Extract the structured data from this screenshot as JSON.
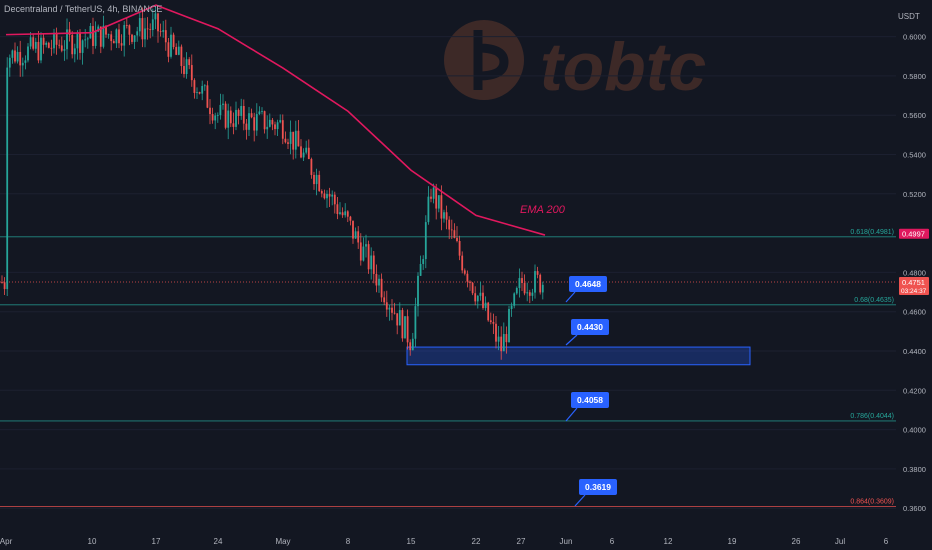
{
  "header": {
    "symbol_title": "Decentraland / TetherUS, 4h, BINANCE",
    "currency": "USDT"
  },
  "watermark": {
    "text": "tobtc",
    "logo_icon": "tobtc-logo-icon",
    "color": "#d2693c"
  },
  "colors": {
    "background": "#131722",
    "up": "#26a69a",
    "down": "#ef5350",
    "ema": "#e0185e",
    "fib_green": "#26a69a",
    "fib_red": "#ef5350",
    "zone": "#2962ff",
    "callout": "#2962ff"
  },
  "chart_data": {
    "type": "candlestick",
    "title": "Decentraland / TetherUS, 4h, BINANCE",
    "ylim": [
      0.352,
      0.628
    ],
    "y_ticks": [
      "0.6000",
      "0.5800",
      "0.5600",
      "0.5400",
      "0.5200",
      "0.4800",
      "0.4600",
      "0.4400",
      "0.4200",
      "0.4000",
      "0.3800",
      "0.3600"
    ],
    "x_ticks": [
      "Apr",
      "10",
      "17",
      "24",
      "May",
      "8",
      "15",
      "22",
      "27",
      "Jun",
      "6",
      "12",
      "19",
      "26",
      "Jul",
      "6"
    ],
    "price_path_approx": [
      [
        "Apr",
        0.59
      ],
      [
        "10",
        0.6
      ],
      [
        "17",
        0.605
      ],
      [
        "24",
        0.56
      ],
      [
        "May",
        0.555
      ],
      [
        "8",
        0.505
      ],
      [
        "15",
        0.445
      ],
      [
        "17 (peak)",
        0.522
      ],
      [
        "22",
        0.47
      ],
      [
        "25 (low)",
        0.441
      ],
      [
        "27",
        0.475
      ],
      [
        "current",
        0.4751
      ]
    ],
    "ema": {
      "label": "EMA 200",
      "points_approx": [
        [
          "Apr",
          0.601
        ],
        [
          "10",
          0.602
        ],
        [
          "17",
          0.616
        ],
        [
          "24",
          0.604
        ],
        [
          "May",
          0.584
        ],
        [
          "8",
          0.562
        ],
        [
          "15",
          0.532
        ],
        [
          "22",
          0.509
        ],
        [
          "28",
          0.499
        ]
      ]
    },
    "fib_levels": [
      {
        "label": "0.618(0.4981)",
        "value": 0.4981,
        "color": "#26a69a"
      },
      {
        "label": "0.68(0.4635)",
        "value": 0.4635,
        "color": "#26a69a"
      },
      {
        "label": "0.786(0.4044)",
        "value": 0.4044,
        "color": "#26a69a"
      },
      {
        "label": "0.864(0.3609)",
        "value": 0.3609,
        "color": "#ef5350"
      }
    ],
    "price_labels": [
      {
        "value": "0.4997",
        "color": "#e0185e"
      },
      {
        "value": "0.4751",
        "sub": "03:24:37",
        "color": "#ef5350"
      }
    ],
    "current_price": 0.4751,
    "callouts": [
      "0.4648",
      "0.4430",
      "0.4058",
      "0.3619"
    ],
    "demand_zone": {
      "from": 0.433,
      "to": 0.442
    }
  }
}
